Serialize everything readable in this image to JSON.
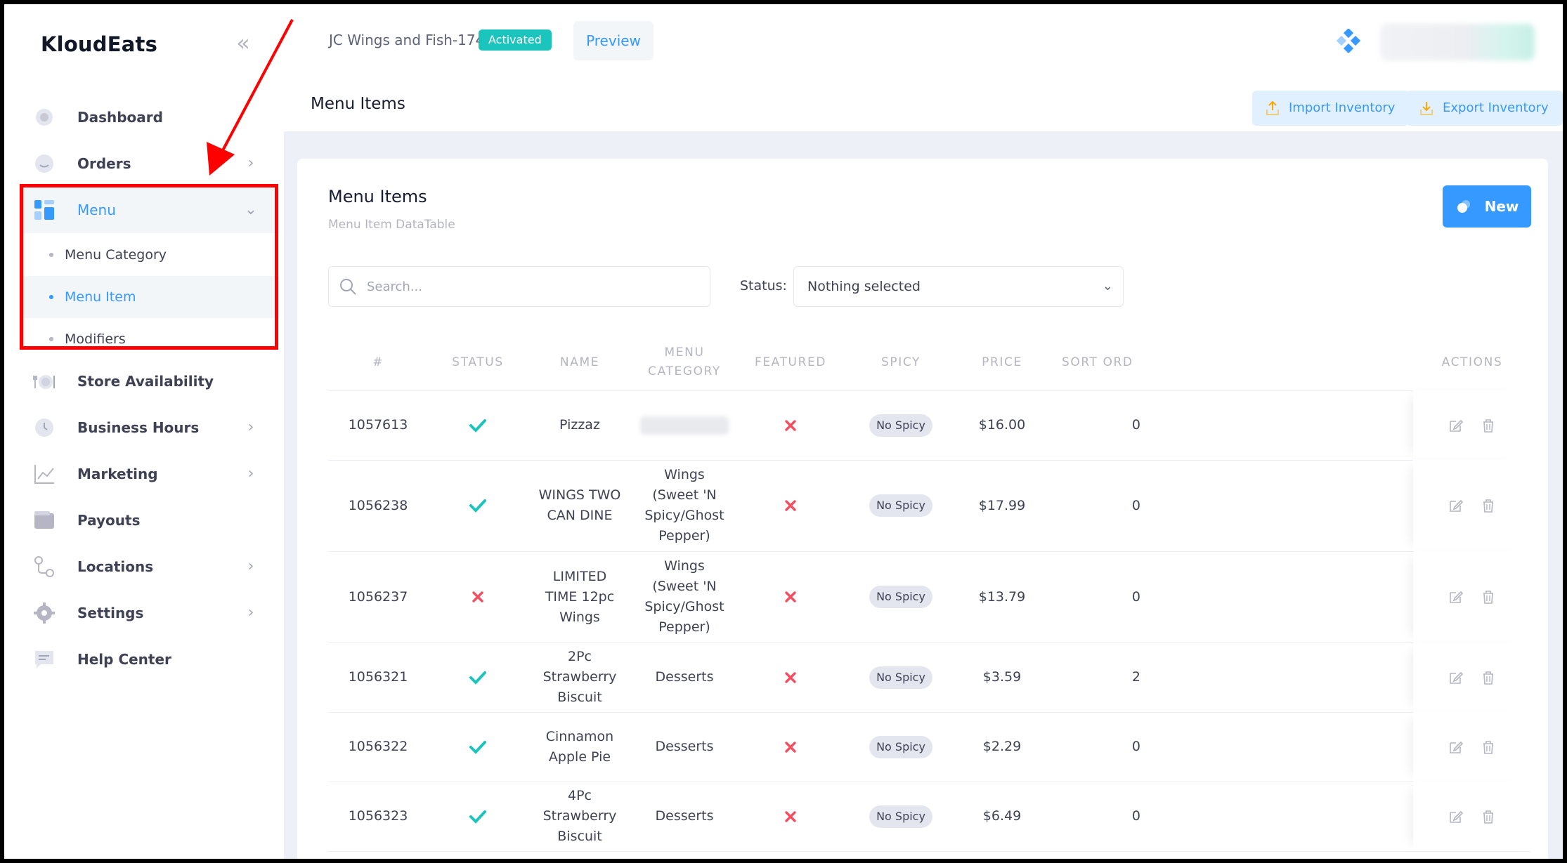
{
  "brand": "KloudEats",
  "sidebar": {
    "items": [
      {
        "label": "Dashboard",
        "icon": "dashboard-icon",
        "chevron": false
      },
      {
        "label": "Orders",
        "icon": "orders-icon",
        "chevron": true
      },
      {
        "label": "Menu",
        "icon": "menu-icon",
        "chevron": true,
        "expanded": true
      },
      {
        "label": "Store Availability",
        "icon": "store-availability-icon",
        "chevron": false
      },
      {
        "label": "Business Hours",
        "icon": "clock-icon",
        "chevron": true
      },
      {
        "label": "Marketing",
        "icon": "chart-icon",
        "chevron": true
      },
      {
        "label": "Payouts",
        "icon": "wallet-icon",
        "chevron": false
      },
      {
        "label": "Locations",
        "icon": "locations-icon",
        "chevron": true
      },
      {
        "label": "Settings",
        "icon": "gear-icon",
        "chevron": true
      },
      {
        "label": "Help Center",
        "icon": "chat-icon",
        "chevron": false
      }
    ],
    "menu_subitems": [
      {
        "label": "Menu Category",
        "active": false
      },
      {
        "label": "Menu Item",
        "active": true
      },
      {
        "label": "Modifiers",
        "active": false
      }
    ]
  },
  "header": {
    "store_name": "JC Wings and Fish-174",
    "status": "Activated",
    "preview_label": "Preview"
  },
  "subheader": {
    "title": "Menu Items",
    "import_label": "Import Inventory",
    "export_label": "Export Inventory"
  },
  "card": {
    "title": "Menu Items",
    "subtitle": "Menu Item DataTable",
    "new_label": "New",
    "search_placeholder": "Search...",
    "status_label": "Status:",
    "status_value": "Nothing selected"
  },
  "table": {
    "columns": [
      "#",
      "STATUS",
      "NAME",
      "MENU CATEGORY",
      "FEATURED",
      "SPICY",
      "PRICE",
      "SORT ORD",
      "ACTIONS"
    ],
    "rows": [
      {
        "id": "1057613",
        "status": true,
        "name": "Pizzaz",
        "category": "",
        "category_hidden": true,
        "featured": false,
        "spicy": "No Spicy",
        "price": "$16.00",
        "sort": "0"
      },
      {
        "id": "1056238",
        "status": true,
        "name": "WINGS TWO CAN DINE",
        "category": "Wings (Sweet 'N Spicy/Ghost Pepper)",
        "featured": false,
        "spicy": "No Spicy",
        "price": "$17.99",
        "sort": "0"
      },
      {
        "id": "1056237",
        "status": false,
        "name": "LIMITED TIME 12pc Wings",
        "category": "Wings (Sweet 'N Spicy/Ghost Pepper)",
        "featured": false,
        "spicy": "No Spicy",
        "price": "$13.79",
        "sort": "0"
      },
      {
        "id": "1056321",
        "status": true,
        "name": "2Pc Strawberry Biscuit",
        "category": "Desserts",
        "featured": false,
        "spicy": "No Spicy",
        "price": "$3.59",
        "sort": "2"
      },
      {
        "id": "1056322",
        "status": true,
        "name": "Cinnamon Apple Pie",
        "category": "Desserts",
        "featured": false,
        "spicy": "No Spicy",
        "price": "$2.29",
        "sort": "0"
      },
      {
        "id": "1056323",
        "status": true,
        "name": "4Pc Strawberry Biscuit",
        "category": "Desserts",
        "featured": false,
        "spicy": "No Spicy",
        "price": "$6.49",
        "sort": "0"
      }
    ]
  },
  "colors": {
    "accent": "#3699ff",
    "success": "#1bc5bd",
    "danger": "#f64e60",
    "annotation": "#ff0000"
  }
}
